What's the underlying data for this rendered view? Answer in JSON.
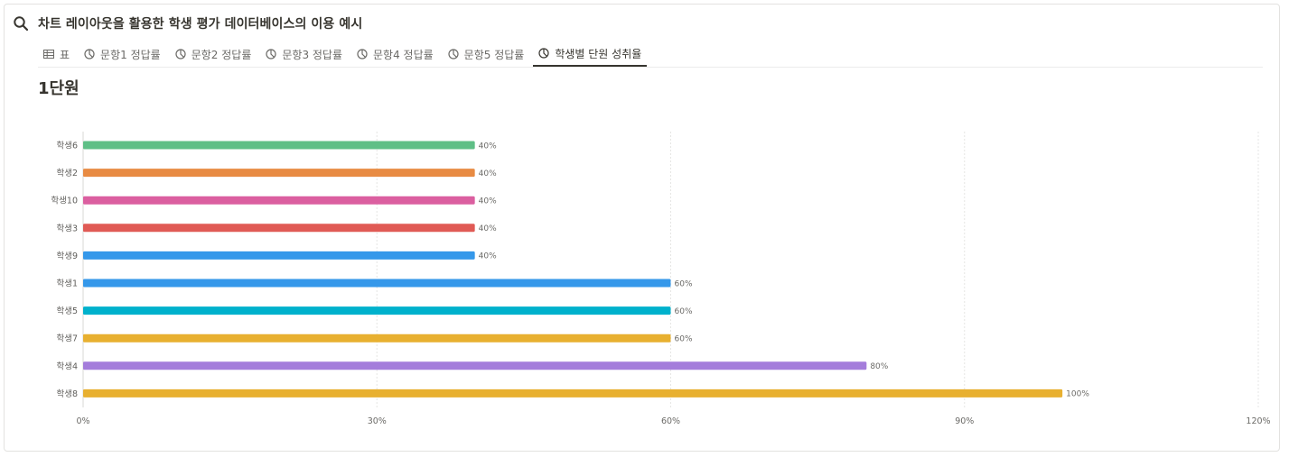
{
  "header": {
    "title": "차트 레이아웃을 활용한 학생 평가 데이터베이스의 이용 예시",
    "icon": "search-icon"
  },
  "tabs": [
    {
      "label": "표",
      "icon": "table-icon",
      "active": false
    },
    {
      "label": "문항1 정답률",
      "icon": "chart-icon",
      "active": false
    },
    {
      "label": "문항2 정답률",
      "icon": "chart-icon",
      "active": false
    },
    {
      "label": "문항3 정답률",
      "icon": "chart-icon",
      "active": false
    },
    {
      "label": "문항4 정답률",
      "icon": "chart-icon",
      "active": false
    },
    {
      "label": "문항5 정답률",
      "icon": "chart-icon",
      "active": false
    },
    {
      "label": "학생별 단원 성취율",
      "icon": "chart-icon",
      "active": true
    }
  ],
  "chart_data": {
    "type": "bar",
    "orientation": "horizontal",
    "title": "1단원",
    "categories": [
      "학생6",
      "학생2",
      "학생10",
      "학생3",
      "학생9",
      "학생1",
      "학생5",
      "학생7",
      "학생4",
      "학생8"
    ],
    "values": [
      40,
      40,
      40,
      40,
      40,
      60,
      60,
      60,
      80,
      100
    ],
    "value_labels": [
      "40%",
      "40%",
      "40%",
      "40%",
      "40%",
      "60%",
      "60%",
      "60%",
      "80%",
      "100%"
    ],
    "colors": [
      "#5fbf86",
      "#e88b43",
      "#db5fa0",
      "#e05a55",
      "#3598ea",
      "#3598ea",
      "#00b1cc",
      "#e8b030",
      "#a47ddb",
      "#e8b030"
    ],
    "xlim": [
      0,
      120
    ],
    "x_ticks": [
      0,
      30,
      60,
      90,
      120
    ],
    "x_tick_labels": [
      "0%",
      "30%",
      "60%",
      "90%",
      "120%"
    ],
    "grid": true,
    "xlabel": "",
    "ylabel": ""
  }
}
